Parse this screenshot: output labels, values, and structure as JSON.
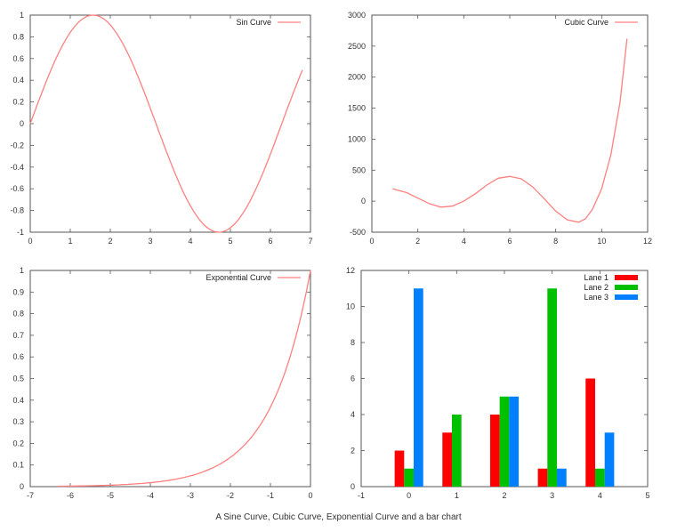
{
  "caption": "A Sine Curve, Cubic Curve, Exponential Curve and a bar chart",
  "colors": {
    "curve": "#ff8080",
    "lane1": "#ff0000",
    "lane2": "#00c000",
    "lane3": "#0080ff"
  },
  "chart_data": [
    {
      "type": "line",
      "series": [
        {
          "name": "Sin Curve",
          "function": "sin(x)",
          "x_range": [
            0,
            6.8
          ]
        }
      ],
      "xlim": [
        0,
        7
      ],
      "ylim": [
        -1,
        1
      ],
      "xticks": [
        0,
        1,
        2,
        3,
        4,
        5,
        6,
        7
      ],
      "yticks": [
        -1,
        -0.8,
        -0.6,
        -0.4,
        -0.2,
        0,
        0.2,
        0.4,
        0.6,
        0.8,
        1
      ],
      "legend": "top-right"
    },
    {
      "type": "line",
      "series": [
        {
          "name": "Cubic Curve",
          "x": [
            0.9,
            1.5,
            2.0,
            2.5,
            3.0,
            3.5,
            4.0,
            4.5,
            5.0,
            5.5,
            6.0,
            6.5,
            7.0,
            7.5,
            8.0,
            8.5,
            9.0,
            9.3,
            9.6,
            10.0,
            10.4,
            10.8,
            11.1
          ],
          "y": [
            200,
            140,
            50,
            -40,
            -95,
            -80,
            0,
            120,
            260,
            370,
            400,
            360,
            230,
            40,
            -160,
            -300,
            -340,
            -280,
            -130,
            200,
            750,
            1600,
            2620
          ]
        }
      ],
      "xlim": [
        0,
        12
      ],
      "ylim": [
        -500,
        3000
      ],
      "xticks": [
        0,
        2,
        4,
        6,
        8,
        10,
        12
      ],
      "yticks": [
        -500,
        0,
        500,
        1000,
        1500,
        2000,
        2500,
        3000
      ],
      "legend": "top-right"
    },
    {
      "type": "line",
      "series": [
        {
          "name": "Exponential Curve",
          "function": "exp(x)",
          "x_range": [
            -6.3,
            0
          ]
        }
      ],
      "xlim": [
        -7,
        0
      ],
      "ylim": [
        0,
        1
      ],
      "xticks": [
        -7,
        -6,
        -5,
        -4,
        -3,
        -2,
        -1,
        0
      ],
      "yticks": [
        0,
        0.1,
        0.2,
        0.3,
        0.4,
        0.5,
        0.6,
        0.7,
        0.8,
        0.9,
        1
      ],
      "legend": "top-right"
    },
    {
      "type": "bar",
      "categories": [
        0,
        1,
        2,
        3,
        4
      ],
      "series": [
        {
          "name": "Lane 1",
          "values": [
            2,
            3,
            4,
            1,
            6
          ]
        },
        {
          "name": "Lane 2",
          "values": [
            1,
            4,
            5,
            11,
            1
          ]
        },
        {
          "name": "Lane 3",
          "values": [
            11,
            0,
            5,
            1,
            3
          ]
        }
      ],
      "xlim": [
        -1,
        5
      ],
      "ylim": [
        0,
        12
      ],
      "xticks": [
        -1,
        0,
        1,
        2,
        3,
        4,
        5
      ],
      "yticks": [
        0,
        2,
        4,
        6,
        8,
        10,
        12
      ],
      "legend": "top-right"
    }
  ]
}
